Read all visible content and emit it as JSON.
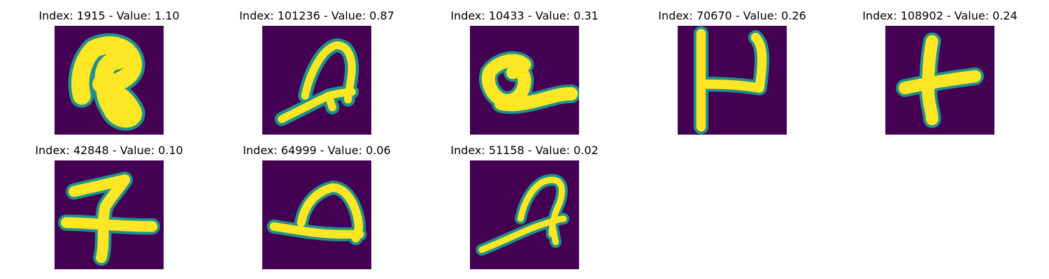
{
  "colors": {
    "background": "#440154",
    "dark_teal": "#31688e",
    "teal": "#21918c",
    "green": "#5ec962",
    "stroke": "#fde725"
  },
  "panels": [
    {
      "title": "Index: 1915 - Value: 1.10",
      "glyph": "R",
      "image_alt": "handwritten character image"
    },
    {
      "title": "Index: 101236 - Value: 0.87",
      "glyph": "cursive-a",
      "image_alt": "handwritten character image"
    },
    {
      "title": "Index: 10433 - Value: 0.31",
      "glyph": "loop-underline",
      "image_alt": "handwritten character image"
    },
    {
      "title": "Index: 70670 - Value: 0.26",
      "glyph": "H",
      "image_alt": "handwritten character image"
    },
    {
      "title": "Index: 108902 - Value: 0.24",
      "glyph": "t",
      "image_alt": "handwritten character image"
    },
    {
      "title": "Index: 42848 - Value: 0.10",
      "glyph": "hook-cross",
      "image_alt": "handwritten character image"
    },
    {
      "title": "Index: 64999 - Value: 0.06",
      "glyph": "loop-baseline",
      "image_alt": "handwritten character image"
    },
    {
      "title": "Index: 51158 - Value: 0.02",
      "glyph": "cursive-a-thin",
      "image_alt": "handwritten character image"
    }
  ]
}
